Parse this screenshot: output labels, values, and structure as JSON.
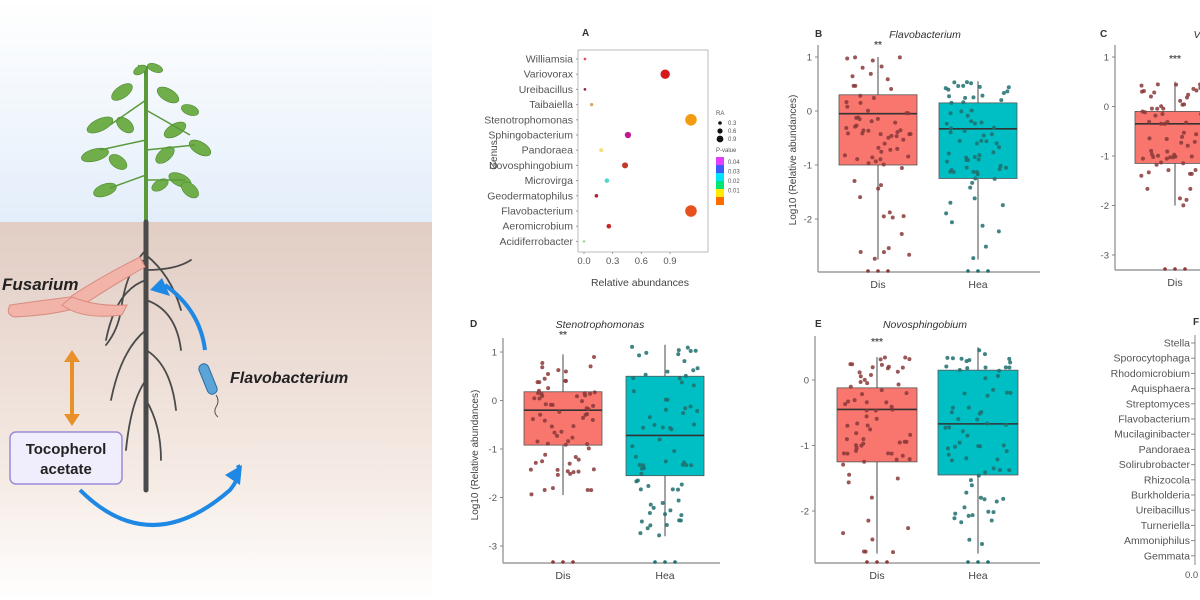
{
  "illustration": {
    "fusarium_label": "Fusarium",
    "flavobacterium_label": "Flavobacterium",
    "tocopherol_label_line1": "Tocopherol",
    "tocopherol_label_line2": "acetate",
    "colors": {
      "sky_top": "#ffffff",
      "sky_bottom": "#e6f0fa",
      "soil_top": "#e1cdc4",
      "soil_bottom": "#fffaf5",
      "plant_green": "#5a9a3a",
      "root": "#4a4a4a",
      "fusarium": "#f2b3a8",
      "arrow_blue": "#1e88e5",
      "arrow_orange": "#e8902a",
      "box_border": "#9b8ad8",
      "box_fill": "#f0eefc"
    }
  },
  "chart_data": [
    {
      "panel": "A",
      "type": "scatter",
      "title": "",
      "xlabel": "Relative abundances",
      "ylabel": "Genus",
      "xlim": [
        -0.02,
        1.18
      ],
      "xticks": [
        "0.0",
        "0.3",
        "0.6",
        "0.9"
      ],
      "xtick_values": [
        0.0,
        0.3,
        0.6,
        0.9
      ],
      "categories": [
        "Williamsia",
        "Variovorax",
        "Ureibacillus",
        "Taibaiella",
        "Stenotrophomonas",
        "Sphingobacterium",
        "Pandoraea",
        "Novosphingobium",
        "Microvirga",
        "Geodermatophilus",
        "Flavobacterium",
        "Aeromicrobium",
        "Acidiferrobacter"
      ],
      "values": [
        0.01,
        0.85,
        0.01,
        0.08,
        1.12,
        0.46,
        0.18,
        0.43,
        0.24,
        0.13,
        1.12,
        0.26,
        0.0
      ],
      "point_colors": [
        "#e84a5f",
        "#d7191c",
        "#8b2a3a",
        "#e0a060",
        "#f39c12",
        "#c2188f",
        "#f3e07a",
        "#c0392b",
        "#4dd9cf",
        "#b0203a",
        "#e8501e",
        "#c62828",
        "#a8d5a0"
      ],
      "legend": {
        "size_title": "RA",
        "size_entries": [
          "0.3",
          "0.6",
          "0.9"
        ],
        "color_title": "P-value",
        "color_entries": [
          "0.04",
          "0.03",
          "0.02",
          "0.01"
        ],
        "placement": "right"
      }
    },
    {
      "panel": "B",
      "type": "box",
      "title": "Flavobacterium",
      "ylabel": "Log10 (Relative abundances)",
      "categories": [
        "Dis",
        "Hea"
      ],
      "ylim": [
        -3.0,
        1.3
      ],
      "yticks": [
        "1",
        "0",
        "-1",
        "-2"
      ],
      "ytick_values": [
        1,
        0,
        -1,
        -2
      ],
      "significance": "**",
      "series": [
        {
          "name": "Dis",
          "color": "#f8766d",
          "q1": -1.0,
          "median": -0.05,
          "q3": 0.3,
          "whisker_low": -2.75,
          "whisker_high": 1.0
        },
        {
          "name": "Hea",
          "color": "#00bfc4",
          "q1": -1.25,
          "median": -0.33,
          "q3": 0.15,
          "whisker_low": -2.75,
          "whisker_high": 0.55
        }
      ]
    },
    {
      "panel": "C",
      "type": "box",
      "title": "V",
      "ylabel": "",
      "categories": [
        "Dis"
      ],
      "ylim": [
        -3.3,
        1.2
      ],
      "yticks": [
        "1",
        "0",
        "-1",
        "-2",
        "-3"
      ],
      "ytick_values": [
        1,
        0,
        -1,
        -2,
        -3
      ],
      "significance": "***",
      "series": [
        {
          "name": "Dis",
          "color": "#f8766d",
          "q1": -1.15,
          "median": -0.35,
          "q3": -0.1,
          "whisker_low": -2.0,
          "whisker_high": 0.5
        }
      ]
    },
    {
      "panel": "D",
      "type": "box",
      "title": "Stenotrophomonas",
      "ylabel": "Log10 (Relative abundances)",
      "categories": [
        "Dis",
        "Hea"
      ],
      "ylim": [
        -3.35,
        1.35
      ],
      "yticks": [
        "1",
        "0",
        "-1",
        "-2",
        "-3"
      ],
      "ytick_values": [
        1,
        0,
        -1,
        -2,
        -3
      ],
      "significance": "**",
      "series": [
        {
          "name": "Dis",
          "color": "#f8766d",
          "q1": -0.92,
          "median": -0.2,
          "q3": 0.18,
          "whisker_low": -1.95,
          "whisker_high": 0.95
        },
        {
          "name": "Hea",
          "color": "#00bfc4",
          "q1": -1.55,
          "median": -0.72,
          "q3": 0.5,
          "whisker_low": -2.8,
          "whisker_high": 1.15
        }
      ]
    },
    {
      "panel": "E",
      "type": "box",
      "title": "Novosphingobium",
      "ylabel": "",
      "categories": [
        "Dis",
        "Hea"
      ],
      "ylim": [
        -2.8,
        0.6
      ],
      "yticks": [
        "0",
        "-1",
        "-2"
      ],
      "ytick_values": [
        0,
        -1,
        -2
      ],
      "significance": "***",
      "series": [
        {
          "name": "Dis",
          "color": "#f8766d",
          "q1": -1.25,
          "median": -0.45,
          "q3": -0.12,
          "whisker_low": -2.65,
          "whisker_high": 0.35
        },
        {
          "name": "Hea",
          "color": "#00bfc4",
          "q1": -1.45,
          "median": -0.67,
          "q3": 0.15,
          "whisker_low": -2.65,
          "whisker_high": 0.5
        }
      ]
    },
    {
      "panel": "F",
      "type": "bar",
      "title": "",
      "categories": [
        "Stella",
        "Sporocytophaga",
        "Rhodomicrobium",
        "Aquisphaera",
        "Streptomyces",
        "Flavobacterium",
        "Mucilaginibacter",
        "Pandoraea",
        "Solirubrobacter",
        "Rhizocola",
        "Burkholderia",
        "Ureibacillus",
        "Turneriella",
        "Ammoniphilus",
        "Gemmata"
      ],
      "xticks": [
        "0.0"
      ]
    }
  ]
}
